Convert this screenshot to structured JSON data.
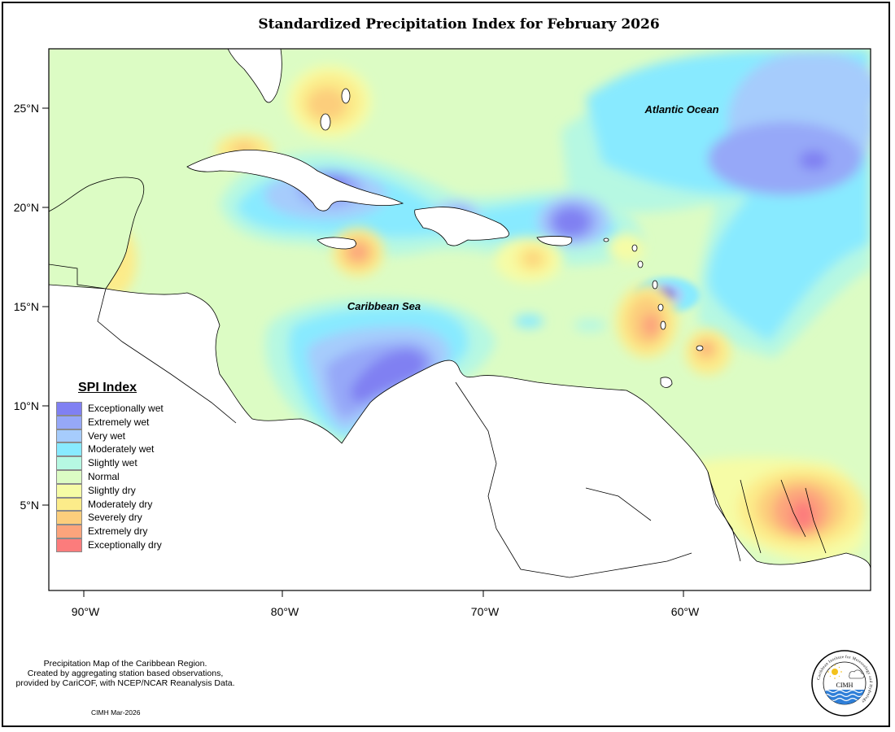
{
  "title": "Standardized Precipitation Index for February 2026",
  "axes": {
    "x_ticks": [
      "90°W",
      "80°W",
      "70°W",
      "60°W"
    ],
    "y_ticks": [
      "25°N",
      "20°N",
      "15°N",
      "10°N",
      "5°N"
    ]
  },
  "map_labels": {
    "atlantic": "Atlantic Ocean",
    "caribbean": "Caribbean Sea"
  },
  "legend": {
    "title": "SPI Index",
    "items": [
      {
        "label": "Exceptionally wet",
        "color": "#8080f2"
      },
      {
        "label": "Extremely wet",
        "color": "#96a8f8"
      },
      {
        "label": "Very wet",
        "color": "#a6ccfc"
      },
      {
        "label": "Moderately wet",
        "color": "#88eaff"
      },
      {
        "label": "Slightly wet",
        "color": "#b6f8e2"
      },
      {
        "label": "Normal",
        "color": "#dcfcc4"
      },
      {
        "label": "Slightly dry",
        "color": "#f6fca6"
      },
      {
        "label": "Moderately dry",
        "color": "#fcec8a"
      },
      {
        "label": "Severely dry",
        "color": "#fcce7c"
      },
      {
        "label": "Extremely dry",
        "color": "#fca47c"
      },
      {
        "label": "Exceptionally dry",
        "color": "#fc7c7c"
      }
    ]
  },
  "footnote": {
    "line1": "Precipitation Map of the Caribbean Region.",
    "line2": "Created by aggregating station based observations,",
    "line3": "provided by CariCOF, with NCEP/NCAR Reanalysis Data."
  },
  "credit": "CIMH Mar-2026",
  "logo": {
    "text": "CIMH",
    "ring_text": "Caribbean Institute for Meteorology and Hydrology"
  }
}
